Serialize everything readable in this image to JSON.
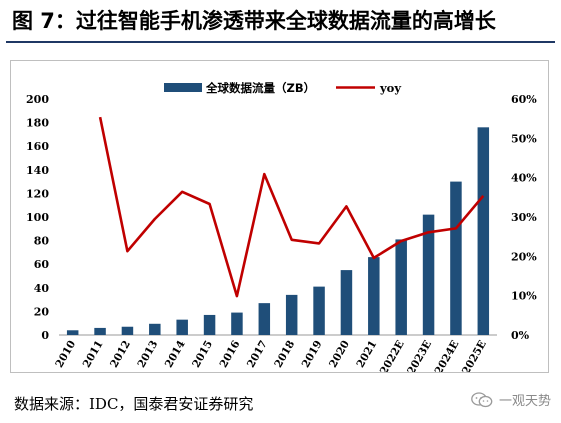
{
  "figure": {
    "title": "图 7：过往智能手机渗透带来全球数据流量的高增长",
    "source": "数据来源：IDC，国泰君安证券研究",
    "watermark": "一观天势",
    "watermark_icon": "wechat-icon"
  },
  "chart_data": {
    "type": "bar",
    "categories": [
      "2010",
      "2011",
      "2012",
      "2013",
      "2014",
      "2015",
      "2016",
      "2017",
      "2018",
      "2019",
      "2020",
      "2021",
      "2022E",
      "2023E",
      "2024E",
      "2025E"
    ],
    "series": [
      {
        "name": "全球数据流量（ZB）",
        "type": "bar",
        "axis": "left",
        "color": "#1f4e79",
        "values": [
          4,
          6,
          7,
          9.5,
          13,
          17,
          19,
          27,
          34,
          41,
          55,
          66,
          81,
          102,
          130,
          176
        ]
      },
      {
        "name": "yoy",
        "type": "line",
        "axis": "right",
        "color": "#c00000",
        "values": [
          null,
          55.4,
          21.3,
          29.5,
          36.4,
          33.3,
          9.9,
          40.9,
          24.2,
          23.3,
          32.7,
          19.6,
          23.9,
          26.1,
          27.1,
          35.4
        ]
      }
    ],
    "y_left": {
      "min": 0,
      "max": 200,
      "step": 20,
      "ticks": [
        "0",
        "20",
        "40",
        "60",
        "80",
        "100",
        "120",
        "140",
        "160",
        "180",
        "200"
      ]
    },
    "y_right": {
      "min": 0,
      "max": 60,
      "step": 10,
      "ticks": [
        "0%",
        "10%",
        "20%",
        "30%",
        "40%",
        "50%",
        "60%"
      ]
    },
    "legend": {
      "placement": "top-center"
    },
    "grid": false
  }
}
